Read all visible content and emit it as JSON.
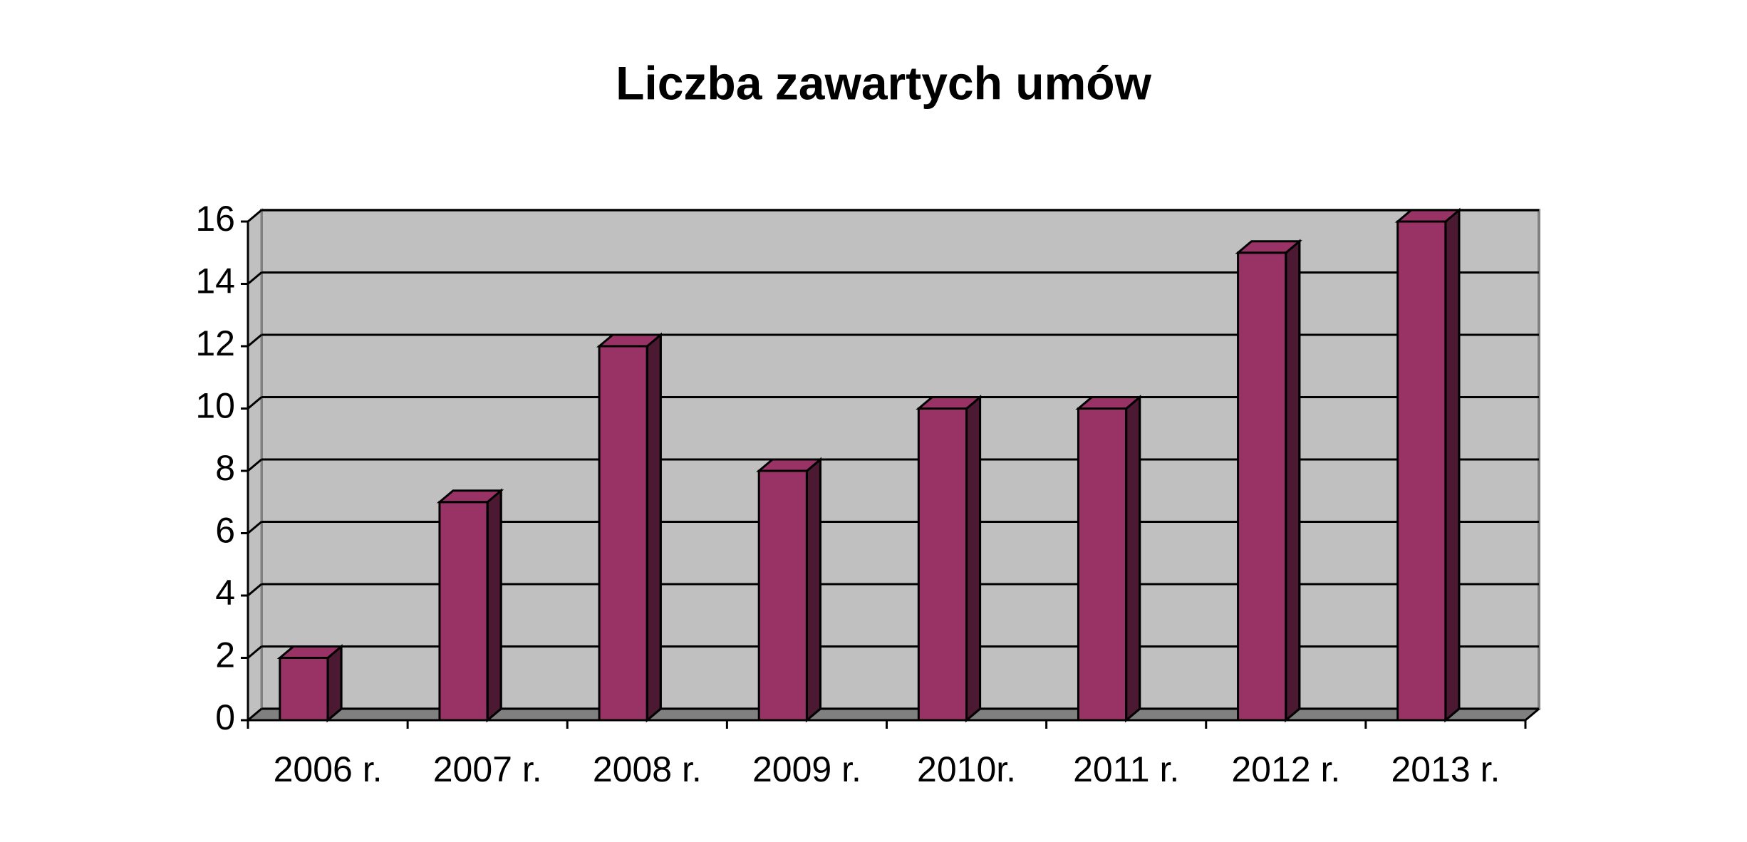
{
  "chart_data": {
    "type": "bar3d",
    "title": "Liczba zawartych umów",
    "categories": [
      "2006 r.",
      "2007 r.",
      "2008 r.",
      "2009 r.",
      "2010r.",
      "2011 r.",
      "2012 r.",
      "2013 r."
    ],
    "values": [
      2,
      7,
      12,
      8,
      10,
      10,
      15,
      16
    ],
    "color": "#993366",
    "ylim": [
      0,
      16
    ],
    "yticks": [
      0,
      2,
      4,
      6,
      8,
      10,
      12,
      14,
      16
    ],
    "grid": true
  }
}
